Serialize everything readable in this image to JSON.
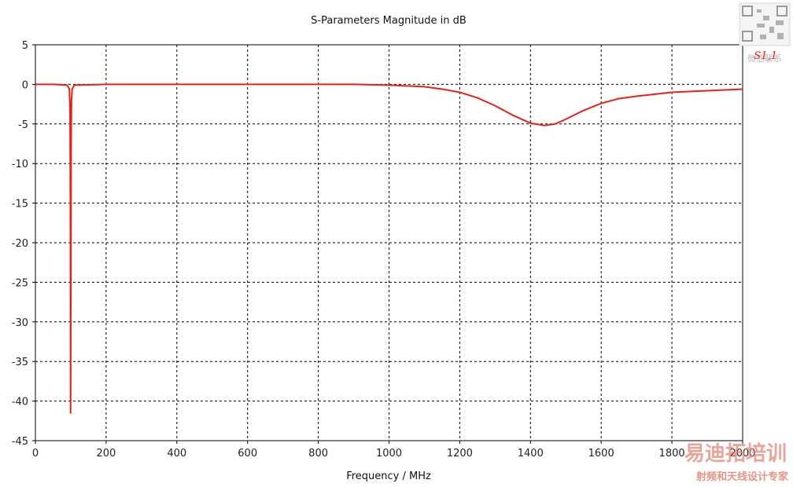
{
  "chart_data": {
    "type": "line",
    "title": "S-Parameters Magnitude in dB",
    "xlabel": "Frequency / MHz",
    "ylabel": "",
    "xlim": [
      0,
      2000
    ],
    "ylim": [
      -45,
      5
    ],
    "x_ticks": [
      "0",
      "200",
      "400",
      "600",
      "800",
      "1000",
      "1200",
      "1400",
      "1600",
      "1800",
      "2000"
    ],
    "y_ticks": [
      "5",
      "0",
      "-5",
      "-10",
      "-15",
      "-20",
      "-25",
      "-30",
      "-35",
      "-40",
      "-45"
    ],
    "grid": true,
    "legend_position": "top-right",
    "series": [
      {
        "name": "S1,1",
        "color": "#e8201b",
        "x": [
          0,
          50,
          90,
          96,
          98,
          99,
          99.5,
          100,
          101,
          102,
          104,
          110,
          200,
          400,
          600,
          800,
          900,
          1000,
          1100,
          1150,
          1200,
          1250,
          1300,
          1350,
          1400,
          1440,
          1470,
          1500,
          1550,
          1600,
          1650,
          1700,
          1800,
          1900,
          2000
        ],
        "y": [
          0,
          0,
          -0.1,
          -0.6,
          -3,
          -16,
          -41.5,
          -30,
          -8,
          -2,
          -0.6,
          -0.1,
          0,
          0,
          0,
          0,
          0,
          -0.1,
          -0.3,
          -0.6,
          -1.0,
          -1.7,
          -2.7,
          -3.9,
          -4.9,
          -5.2,
          -5.0,
          -4.4,
          -3.3,
          -2.4,
          -1.8,
          -1.5,
          -1.0,
          -0.8,
          -0.6
        ]
      }
    ]
  },
  "watermark": {
    "logo_text": "易迪拓培训",
    "sub_text": "射频和天线设计专家",
    "qr_caption": "微信联系"
  }
}
